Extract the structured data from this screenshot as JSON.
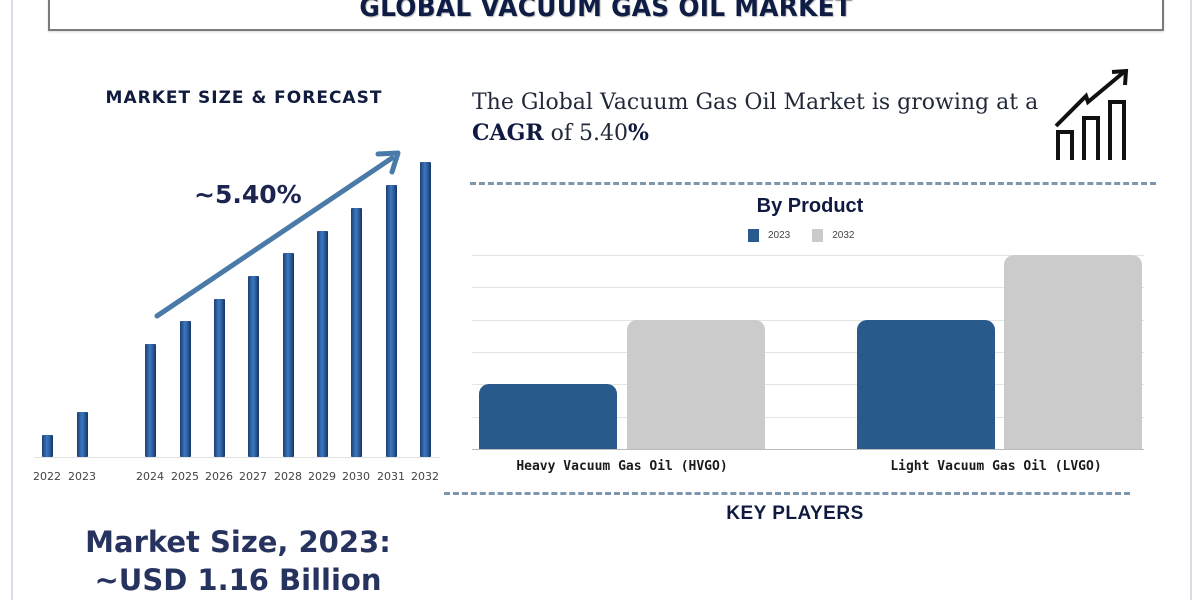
{
  "title": "GLOBAL VACUUM GAS OIL MARKET",
  "left_panel": {
    "heading": "MARKET SIZE & FORECAST",
    "cagr_label": "~5.40%",
    "market_size_line1": "Market Size, 2023:",
    "market_size_line2": "~USD 1.16 Billion"
  },
  "headline": {
    "text_before": "The Global Vacuum Gas Oil Market is growing at a ",
    "bold_cagr": "CAGR",
    "text_mid": " of 5.40",
    "bold_percent": "%"
  },
  "icons": {
    "growth_chart": "growth-chart-icon",
    "trend_arrow": "trend-arrow-icon"
  },
  "product_section": {
    "title": "By Product",
    "key_players_title": "KEY PLAYERS"
  },
  "colors": {
    "title_navy": "#0f1d45",
    "bar_blue": "#2a5d9c",
    "product_2023": "#285a8b",
    "product_2032": "#cbcbcb",
    "dash_line": "#7d96ab",
    "arrow": "#4a7aa8"
  },
  "chart_data": [
    {
      "type": "bar",
      "title": "MARKET SIZE & FORECAST",
      "categories": [
        "2022",
        "2023",
        "2024",
        "2025",
        "2026",
        "2027",
        "2028",
        "2029",
        "2030",
        "2031",
        "2032"
      ],
      "values": [
        22,
        45,
        113,
        136,
        158,
        181,
        204,
        226,
        249,
        272,
        295
      ],
      "xlabel": "",
      "ylabel": "",
      "annotations": [
        "~5.40%"
      ],
      "grid": false,
      "note": "Relative bar heights (px above baseline); no y-axis shown"
    },
    {
      "type": "bar",
      "title": "By Product",
      "categories": [
        "Heavy Vacuum Gas Oil (HVGO)",
        "Light Vacuum Gas Oil (LVGO)"
      ],
      "series": [
        {
          "name": "2023",
          "values": [
            2,
            4
          ]
        },
        {
          "name": "2032",
          "values": [
            4,
            6
          ]
        }
      ],
      "legend": [
        "2023",
        "2032"
      ],
      "legend_position": "top",
      "grid": true,
      "ylim": [
        0,
        6
      ],
      "xlabel": "",
      "ylabel": ""
    }
  ]
}
